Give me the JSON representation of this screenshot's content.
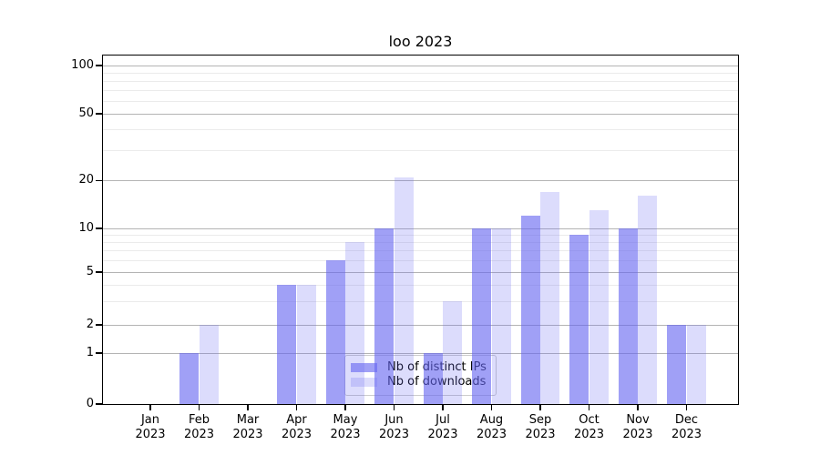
{
  "title": "loo 2023",
  "chart_data": {
    "type": "bar",
    "title": "loo 2023",
    "categories": [
      "Jan 2023",
      "Feb 2023",
      "Mar 2023",
      "Apr 2023",
      "May 2023",
      "Jun 2023",
      "Jul 2023",
      "Aug 2023",
      "Sep 2023",
      "Oct 2023",
      "Nov 2023",
      "Dec 2023"
    ],
    "series": [
      {
        "name": "Nb of distinct IPs",
        "key": "ips",
        "values": [
          0,
          1,
          0,
          4,
          6,
          10,
          1,
          10,
          12,
          9,
          10,
          2
        ]
      },
      {
        "name": "Nb of downloads",
        "key": "downloads",
        "values": [
          0,
          2,
          0,
          4,
          8,
          21,
          3,
          10,
          17,
          13,
          16,
          2
        ]
      }
    ],
    "xlabel": "",
    "ylabel": "",
    "yscale": "log-like (1-2-5 tick pattern with zero baseline)",
    "yticks_major": [
      0,
      1,
      2,
      5,
      10,
      20,
      50,
      100
    ],
    "yticks_minor": [
      3,
      4,
      6,
      7,
      8,
      9,
      30,
      40,
      60,
      70,
      80,
      90
    ],
    "ylim": [
      0,
      115
    ],
    "grid": true,
    "legend_position": "lower center"
  },
  "legend": {
    "items": [
      {
        "label": "Nb of distinct IPs",
        "key": "ips"
      },
      {
        "label": "Nb of downloads",
        "key": "downloads"
      }
    ]
  },
  "colors": {
    "bar_ips": "rgba(102,102,240,0.62)",
    "bar_downloads": "rgba(102,102,240,0.23)",
    "grid_major": "#b4b4b4",
    "grid_minor": "#ebebeb",
    "axis": "#000000",
    "legend_border": "#cccccc",
    "text": "#000000"
  }
}
